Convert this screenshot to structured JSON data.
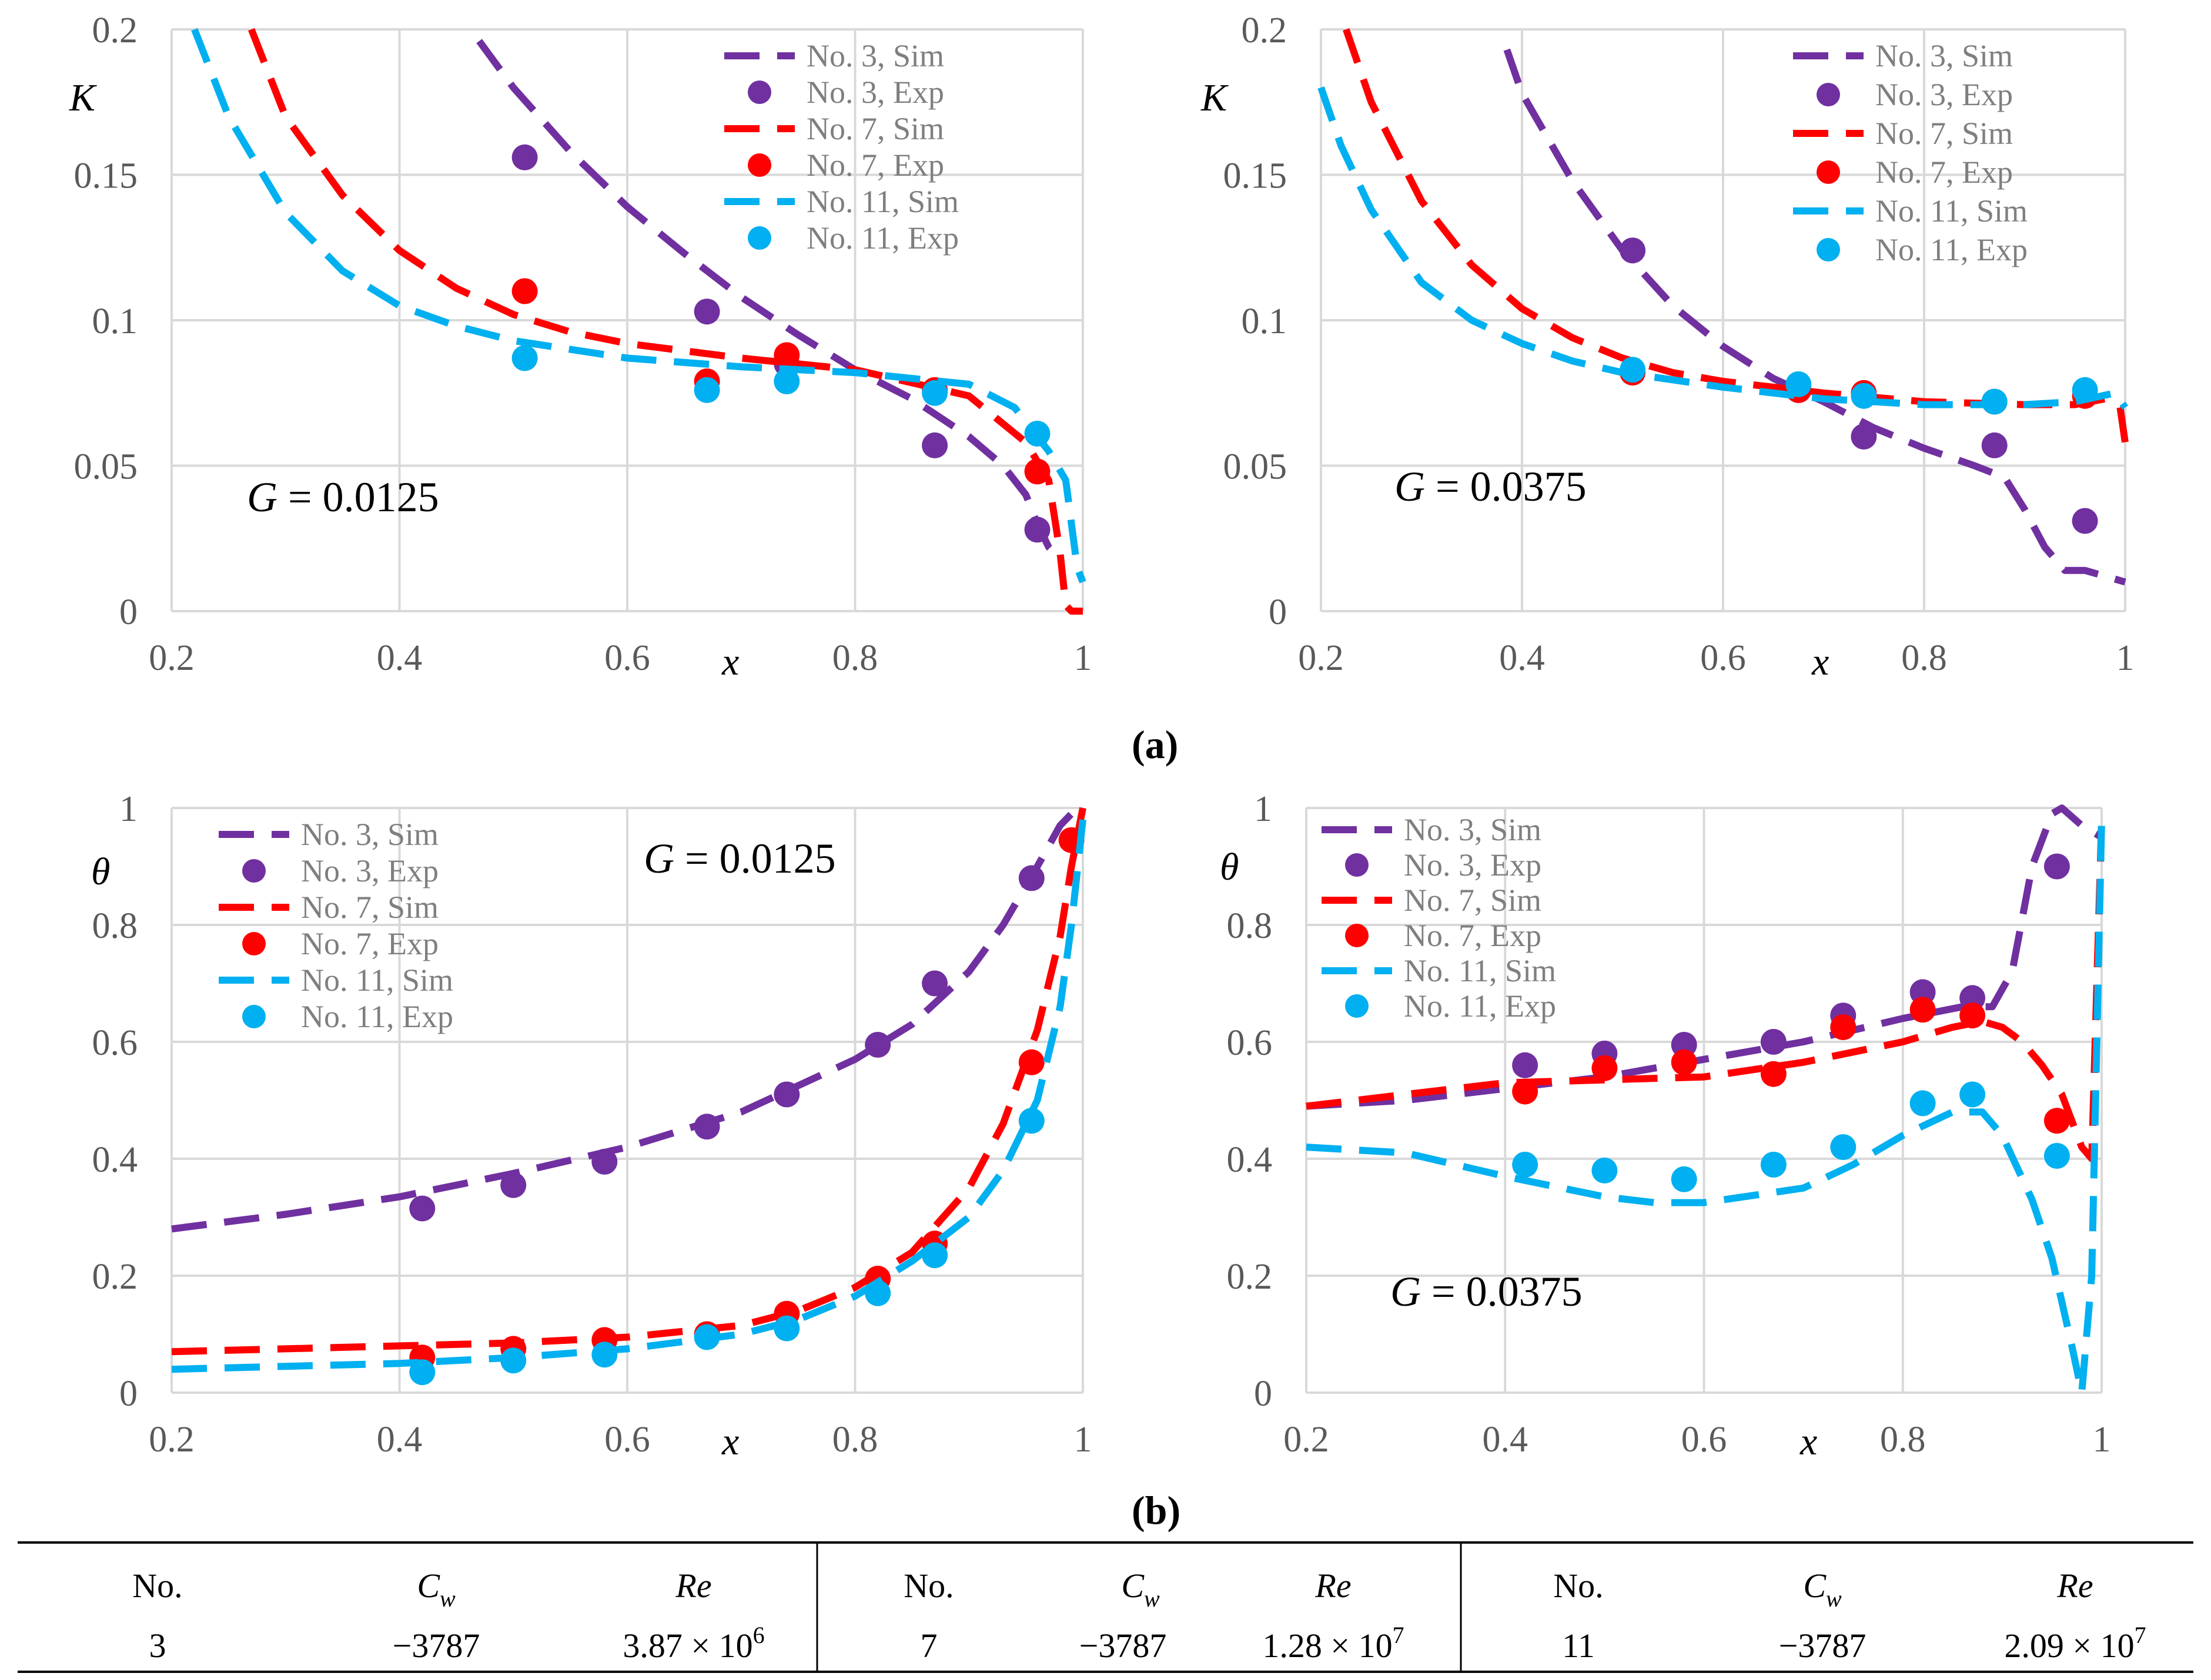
{
  "colors": {
    "no3": "#7030a0",
    "no7": "#ff0000",
    "no11": "#00b0f0",
    "grid": "#d9d9d9"
  },
  "panel_labels": {
    "a": "(a)",
    "b": "(b)"
  },
  "legend_labels": [
    "No. 3, Sim",
    "No. 3, Exp",
    "No. 7, Sim",
    "No. 7, Exp",
    "No. 11, Sim",
    "No. 11, Exp"
  ],
  "chart_data": [
    {
      "type": "line",
      "id": "K_G0125",
      "ylabel": "K",
      "xlabel": "x",
      "annotation": {
        "var": "G",
        "value": " = 0.0125"
      },
      "xlim": [
        0.2,
        1
      ],
      "ylim": [
        0,
        0.2
      ],
      "xticks": [
        "0.2",
        "0.4",
        "0.6",
        "0.8",
        "1"
      ],
      "yticks": [
        "0",
        "0.05",
        "0.1",
        "0.15",
        "0.2"
      ],
      "series": [
        {
          "name": "No. 3, Sim",
          "color": "#7030a0",
          "style": "dashed",
          "x": [
            0.47,
            0.5,
            0.55,
            0.6,
            0.65,
            0.7,
            0.75,
            0.8,
            0.85,
            0.9,
            0.93,
            0.95,
            0.96,
            0.97,
            0.98
          ],
          "y": [
            0.196,
            0.18,
            0.158,
            0.139,
            0.123,
            0.108,
            0.095,
            0.083,
            0.073,
            0.06,
            0.05,
            0.04,
            0.03,
            0.022,
            0.018
          ]
        },
        {
          "name": "No. 3, Exp",
          "color": "#7030a0",
          "style": "marker",
          "x": [
            0.51,
            0.67,
            0.74,
            0.87,
            0.96
          ],
          "y": [
            0.156,
            0.103,
            0.085,
            0.057,
            0.028
          ]
        },
        {
          "name": "No. 7, Sim",
          "color": "#ff0000",
          "style": "dashed",
          "x": [
            0.27,
            0.3,
            0.35,
            0.4,
            0.45,
            0.5,
            0.55,
            0.6,
            0.7,
            0.8,
            0.9,
            0.95,
            0.97,
            0.98,
            0.985,
            0.99,
            1.0
          ],
          "y": [
            0.2,
            0.17,
            0.143,
            0.124,
            0.111,
            0.102,
            0.096,
            0.092,
            0.087,
            0.083,
            0.074,
            0.058,
            0.045,
            0.02,
            0.002,
            0.0,
            0.0
          ]
        },
        {
          "name": "No. 7, Exp",
          "color": "#ff0000",
          "style": "marker",
          "x": [
            0.51,
            0.67,
            0.74,
            0.87,
            0.96
          ],
          "y": [
            0.11,
            0.079,
            0.088,
            0.076,
            0.048
          ]
        },
        {
          "name": "No. 11, Sim",
          "color": "#00b0f0",
          "style": "dashed",
          "x": [
            0.22,
            0.25,
            0.3,
            0.35,
            0.4,
            0.45,
            0.5,
            0.6,
            0.7,
            0.8,
            0.9,
            0.94,
            0.97,
            0.985,
            0.995,
            1.0
          ],
          "y": [
            0.2,
            0.17,
            0.137,
            0.117,
            0.105,
            0.098,
            0.093,
            0.087,
            0.084,
            0.082,
            0.078,
            0.07,
            0.055,
            0.045,
            0.015,
            0.01
          ]
        },
        {
          "name": "No. 11, Exp",
          "color": "#00b0f0",
          "style": "marker",
          "x": [
            0.51,
            0.67,
            0.74,
            0.87,
            0.96
          ],
          "y": [
            0.087,
            0.076,
            0.079,
            0.075,
            0.061
          ]
        }
      ]
    },
    {
      "type": "line",
      "id": "K_G0375",
      "ylabel": "K",
      "xlabel": "x",
      "annotation": {
        "var": "G",
        "value": " = 0.0375"
      },
      "xlim": [
        0.2,
        1
      ],
      "ylim": [
        0,
        0.2
      ],
      "xticks": [
        "0.2",
        "0.4",
        "0.6",
        "0.8",
        "1"
      ],
      "yticks": [
        "0",
        "0.05",
        "0.1",
        "0.15",
        "0.2"
      ],
      "series": [
        {
          "name": "No. 3, Sim",
          "color": "#7030a0",
          "style": "dashed",
          "x": [
            0.385,
            0.4,
            0.45,
            0.5,
            0.55,
            0.6,
            0.65,
            0.7,
            0.75,
            0.8,
            0.85,
            0.88,
            0.9,
            0.92,
            0.94,
            0.96,
            0.98,
            1.0
          ],
          "y": [
            0.193,
            0.178,
            0.148,
            0.124,
            0.105,
            0.091,
            0.08,
            0.072,
            0.063,
            0.056,
            0.05,
            0.046,
            0.035,
            0.022,
            0.014,
            0.014,
            0.012,
            0.01
          ]
        },
        {
          "name": "No. 3, Exp",
          "color": "#7030a0",
          "style": "marker",
          "x": [
            0.51,
            0.675,
            0.74,
            0.87,
            0.96
          ],
          "y": [
            0.124,
            0.076,
            0.06,
            0.057,
            0.031
          ]
        },
        {
          "name": "No. 7, Sim",
          "color": "#ff0000",
          "style": "dashed",
          "x": [
            0.225,
            0.25,
            0.3,
            0.35,
            0.4,
            0.45,
            0.5,
            0.55,
            0.6,
            0.7,
            0.8,
            0.9,
            0.95,
            0.98,
            0.995,
            1.0
          ],
          "y": [
            0.2,
            0.175,
            0.141,
            0.119,
            0.104,
            0.094,
            0.087,
            0.082,
            0.079,
            0.075,
            0.072,
            0.071,
            0.071,
            0.073,
            0.07,
            0.058
          ]
        },
        {
          "name": "No. 7, Exp",
          "color": "#ff0000",
          "style": "marker",
          "x": [
            0.51,
            0.675,
            0.74,
            0.87,
            0.96
          ],
          "y": [
            0.082,
            0.076,
            0.075,
            0.072,
            0.074
          ]
        },
        {
          "name": "No. 11, Sim",
          "color": "#00b0f0",
          "style": "dashed",
          "x": [
            0.2,
            0.22,
            0.25,
            0.3,
            0.35,
            0.4,
            0.45,
            0.5,
            0.6,
            0.7,
            0.8,
            0.9,
            0.95,
            0.99,
            1.0
          ],
          "y": [
            0.18,
            0.16,
            0.138,
            0.113,
            0.1,
            0.092,
            0.086,
            0.082,
            0.077,
            0.073,
            0.071,
            0.071,
            0.072,
            0.075,
            0.07
          ]
        },
        {
          "name": "No. 11, Exp",
          "color": "#00b0f0",
          "style": "marker",
          "x": [
            0.51,
            0.675,
            0.74,
            0.87,
            0.96
          ],
          "y": [
            0.083,
            0.078,
            0.074,
            0.072,
            0.076
          ]
        }
      ]
    },
    {
      "type": "line",
      "id": "theta_G0125",
      "ylabel": "θ",
      "xlabel": "x",
      "annotation": {
        "var": "G",
        "value": " = 0.0125"
      },
      "xlim": [
        0.2,
        1
      ],
      "ylim": [
        0,
        1
      ],
      "xticks": [
        "0.2",
        "0.4",
        "0.6",
        "0.8",
        "1"
      ],
      "yticks": [
        "0",
        "0.2",
        "0.4",
        "0.6",
        "0.8",
        "1"
      ],
      "series": [
        {
          "name": "No. 3, Sim",
          "color": "#7030a0",
          "style": "dashed",
          "x": [
            0.2,
            0.3,
            0.4,
            0.5,
            0.6,
            0.7,
            0.8,
            0.85,
            0.9,
            0.93,
            0.96,
            0.98,
            0.99,
            1.0
          ],
          "y": [
            0.28,
            0.305,
            0.335,
            0.375,
            0.42,
            0.48,
            0.57,
            0.63,
            0.72,
            0.8,
            0.9,
            0.97,
            0.99,
            1.0
          ]
        },
        {
          "name": "No. 3, Exp",
          "color": "#7030a0",
          "style": "marker",
          "x": [
            0.42,
            0.5,
            0.58,
            0.67,
            0.74,
            0.82,
            0.87,
            0.955
          ],
          "y": [
            0.315,
            0.355,
            0.395,
            0.455,
            0.51,
            0.595,
            0.7,
            0.88
          ]
        },
        {
          "name": "No. 7, Sim",
          "color": "#ff0000",
          "style": "dashed",
          "x": [
            0.2,
            0.3,
            0.4,
            0.5,
            0.6,
            0.7,
            0.75,
            0.8,
            0.85,
            0.9,
            0.93,
            0.96,
            0.98,
            0.99,
            1.0
          ],
          "y": [
            0.07,
            0.075,
            0.08,
            0.085,
            0.095,
            0.115,
            0.14,
            0.18,
            0.24,
            0.35,
            0.46,
            0.62,
            0.78,
            0.9,
            1.0
          ]
        },
        {
          "name": "No. 7, Exp",
          "color": "#ff0000",
          "style": "marker",
          "x": [
            0.42,
            0.5,
            0.58,
            0.67,
            0.74,
            0.82,
            0.87,
            0.955,
            0.99
          ],
          "y": [
            0.06,
            0.075,
            0.09,
            0.1,
            0.135,
            0.195,
            0.255,
            0.565,
            0.945
          ]
        },
        {
          "name": "No. 11, Sim",
          "color": "#00b0f0",
          "style": "dashed",
          "x": [
            0.2,
            0.3,
            0.4,
            0.5,
            0.6,
            0.7,
            0.75,
            0.8,
            0.85,
            0.9,
            0.93,
            0.96,
            0.98,
            0.99,
            1.0
          ],
          "y": [
            0.04,
            0.045,
            0.05,
            0.06,
            0.075,
            0.1,
            0.125,
            0.165,
            0.225,
            0.3,
            0.38,
            0.5,
            0.66,
            0.8,
            0.98
          ]
        },
        {
          "name": "No. 11, Exp",
          "color": "#00b0f0",
          "style": "marker",
          "x": [
            0.42,
            0.5,
            0.58,
            0.67,
            0.74,
            0.82,
            0.87,
            0.955
          ],
          "y": [
            0.035,
            0.055,
            0.065,
            0.095,
            0.11,
            0.17,
            0.235,
            0.465
          ]
        }
      ]
    },
    {
      "type": "line",
      "id": "theta_G0375",
      "ylabel": "θ",
      "xlabel": "x",
      "annotation": {
        "var": "G",
        "value": " = 0.0375"
      },
      "xlim": [
        0.2,
        1
      ],
      "ylim": [
        0,
        1
      ],
      "xticks": [
        "0.2",
        "0.4",
        "0.6",
        "0.8",
        "1"
      ],
      "yticks": [
        "0",
        "0.2",
        "0.4",
        "0.6",
        "0.8",
        "1"
      ],
      "series": [
        {
          "name": "No. 3, Sim",
          "color": "#7030a0",
          "style": "dashed",
          "x": [
            0.2,
            0.3,
            0.4,
            0.5,
            0.6,
            0.7,
            0.8,
            0.86,
            0.89,
            0.91,
            0.93,
            0.95,
            0.96,
            0.98,
            0.99,
            1.0
          ],
          "y": [
            0.49,
            0.5,
            0.52,
            0.54,
            0.57,
            0.6,
            0.64,
            0.66,
            0.66,
            0.72,
            0.9,
            0.99,
            1.0,
            0.97,
            0.96,
            0.95
          ]
        },
        {
          "name": "No. 3, Exp",
          "color": "#7030a0",
          "style": "marker",
          "x": [
            0.42,
            0.5,
            0.58,
            0.67,
            0.74,
            0.82,
            0.87,
            0.955
          ],
          "y": [
            0.56,
            0.58,
            0.595,
            0.6,
            0.645,
            0.685,
            0.675,
            0.9
          ]
        },
        {
          "name": "No. 7, Sim",
          "color": "#ff0000",
          "style": "dashed",
          "x": [
            0.2,
            0.3,
            0.4,
            0.5,
            0.6,
            0.7,
            0.8,
            0.85,
            0.88,
            0.9,
            0.92,
            0.94,
            0.96,
            0.98,
            0.99,
            1.0
          ],
          "y": [
            0.49,
            0.51,
            0.53,
            0.535,
            0.54,
            0.565,
            0.6,
            0.625,
            0.635,
            0.625,
            0.6,
            0.56,
            0.51,
            0.42,
            0.4,
            0.98
          ]
        },
        {
          "name": "No. 7, Exp",
          "color": "#ff0000",
          "style": "marker",
          "x": [
            0.42,
            0.5,
            0.58,
            0.67,
            0.74,
            0.82,
            0.87,
            0.955
          ],
          "y": [
            0.515,
            0.555,
            0.565,
            0.545,
            0.625,
            0.655,
            0.645,
            0.465
          ]
        },
        {
          "name": "No. 11, Sim",
          "color": "#00b0f0",
          "style": "dashed",
          "x": [
            0.2,
            0.3,
            0.4,
            0.5,
            0.55,
            0.6,
            0.7,
            0.75,
            0.8,
            0.85,
            0.88,
            0.9,
            0.93,
            0.95,
            0.97,
            0.98,
            0.99,
            1.0
          ],
          "y": [
            0.42,
            0.41,
            0.37,
            0.335,
            0.325,
            0.325,
            0.35,
            0.39,
            0.44,
            0.48,
            0.48,
            0.44,
            0.33,
            0.23,
            0.08,
            0.0,
            0.2,
            0.98
          ]
        },
        {
          "name": "No. 11, Exp",
          "color": "#00b0f0",
          "style": "marker",
          "x": [
            0.42,
            0.5,
            0.58,
            0.67,
            0.74,
            0.82,
            0.87,
            0.955
          ],
          "y": [
            0.39,
            0.38,
            0.365,
            0.39,
            0.42,
            0.495,
            0.51,
            0.405
          ]
        }
      ]
    }
  ],
  "table": {
    "headers": [
      "No.",
      "C",
      "Re"
    ],
    "cw_sub": "w",
    "groups": [
      {
        "no": "3",
        "cw": "−3787",
        "re_mant": "3.87 × 10",
        "re_exp": "6"
      },
      {
        "no": "7",
        "cw": "−3787",
        "re_mant": "1.28 × 10",
        "re_exp": "7"
      },
      {
        "no": "11",
        "cw": "−3787",
        "re_mant": "2.09 × 10",
        "re_exp": "7"
      }
    ]
  }
}
